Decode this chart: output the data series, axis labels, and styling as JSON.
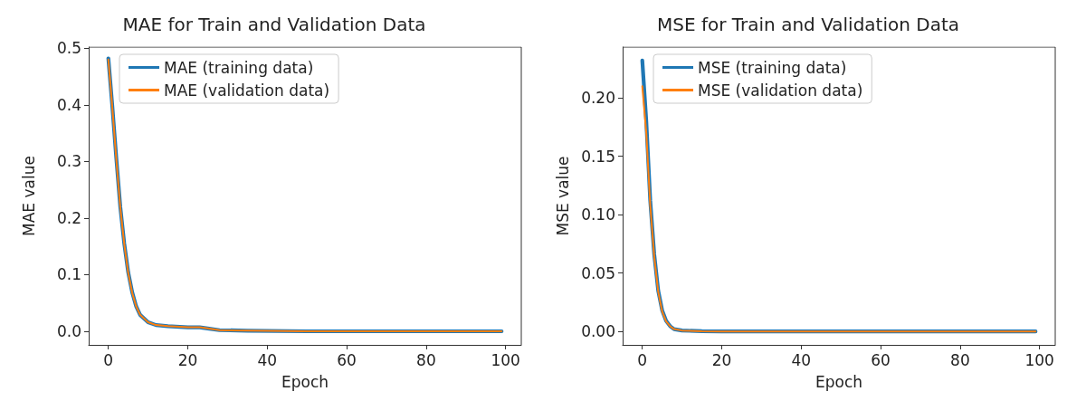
{
  "chart_data": [
    {
      "type": "line",
      "title": "MAE for Train and Validation Data",
      "xlabel": "Epoch",
      "ylabel": "MAE value",
      "x": [
        0,
        1,
        2,
        3,
        4,
        5,
        6,
        7,
        8,
        10,
        12,
        15,
        20,
        23,
        25,
        28,
        35,
        50,
        70,
        99
      ],
      "series": [
        {
          "name": "MAE (training data)",
          "color": "#1f77b4",
          "values": [
            0.482,
            0.397,
            0.306,
            0.22,
            0.155,
            0.104,
            0.069,
            0.044,
            0.029,
            0.016,
            0.011,
            0.009,
            0.007,
            0.007,
            0.005,
            0.002,
            0.001,
            0,
            0,
            0
          ]
        },
        {
          "name": "MAE (validation data)",
          "color": "#ff7f0e",
          "values": [
            0.48,
            0.395,
            0.304,
            0.219,
            0.154,
            0.103,
            0.068,
            0.044,
            0.029,
            0.016,
            0.011,
            0.009,
            0.007,
            0.007,
            0.005,
            0.002,
            0.001,
            0,
            0,
            0
          ]
        }
      ],
      "xlim": [
        -4.95,
        103.95
      ],
      "ylim": [
        -0.024,
        0.502
      ],
      "xticks": [
        0,
        20,
        40,
        60,
        80,
        100
      ],
      "yticks": [
        {
          "value": 0,
          "label": "0.0"
        },
        {
          "value": 0.1,
          "label": "0.1"
        },
        {
          "value": 0.2,
          "label": "0.2"
        },
        {
          "value": 0.3,
          "label": "0.3"
        },
        {
          "value": 0.4,
          "label": "0.4"
        },
        {
          "value": 0.5,
          "label": "0.5"
        }
      ],
      "legend": "top left",
      "marker": "none",
      "line_style": "solid",
      "grid": false
    },
    {
      "type": "line",
      "title": "MSE for Train and Validation Data",
      "xlabel": "Epoch",
      "ylabel": "MSE value",
      "x": [
        0,
        1,
        2,
        3,
        4,
        5,
        6,
        7,
        8,
        10,
        15,
        20,
        40,
        60,
        80,
        99
      ],
      "series": [
        {
          "name": "MSE (training data)",
          "color": "#1f77b4",
          "values": [
            0.232,
            0.18,
            0.112,
            0.066,
            0.035,
            0.018,
            0.009,
            0.0045,
            0.002,
            0.0008,
            0.0002,
            0,
            0,
            0,
            0,
            0
          ]
        },
        {
          "name": "MSE (validation data)",
          "color": "#ff7f0e",
          "values": [
            0.21,
            0.17,
            0.108,
            0.064,
            0.034,
            0.017,
            0.0086,
            0.0044,
            0.002,
            0.0008,
            0.0002,
            0,
            0,
            0,
            0,
            0
          ]
        }
      ],
      "xlim": [
        -4.95,
        103.95
      ],
      "ylim": [
        -0.0115,
        0.2435
      ],
      "xticks": [
        0,
        20,
        40,
        60,
        80,
        100
      ],
      "yticks": [
        {
          "value": 0,
          "label": "0.00"
        },
        {
          "value": 0.05,
          "label": "0.05"
        },
        {
          "value": 0.1,
          "label": "0.10"
        },
        {
          "value": 0.15,
          "label": "0.15"
        },
        {
          "value": 0.2,
          "label": "0.20"
        }
      ],
      "legend": "top left",
      "marker": "none",
      "line_style": "solid",
      "grid": false
    }
  ]
}
